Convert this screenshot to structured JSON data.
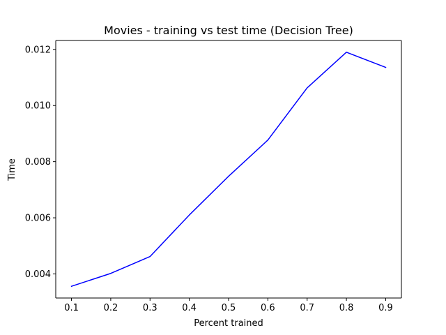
{
  "chart_data": {
    "type": "line",
    "title": "Movies - training vs test time (Decision Tree)",
    "xlabel": "Percent trained",
    "ylabel": "Time",
    "x": [
      0.1,
      0.2,
      0.3,
      0.4,
      0.5,
      0.6,
      0.7,
      0.8,
      0.9
    ],
    "series": [
      {
        "values": [
          0.00356,
          0.00402,
          0.00462,
          0.0061,
          0.00748,
          0.00877,
          0.01063,
          0.0119,
          0.01136
        ],
        "color": "#0000ff"
      }
    ],
    "xticks": [
      "0.1",
      "0.2",
      "0.3",
      "0.4",
      "0.5",
      "0.6",
      "0.7",
      "0.8",
      "0.9"
    ],
    "yticks": [
      "0.004",
      "0.006",
      "0.008",
      "0.010",
      "0.012"
    ],
    "xlim": [
      0.06,
      0.94
    ],
    "ylim": [
      0.003143,
      0.012318
    ],
    "grid": false,
    "legend": "none"
  }
}
